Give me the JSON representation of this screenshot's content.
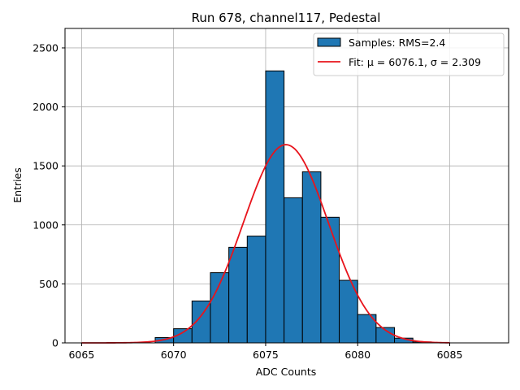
{
  "chart_data": {
    "type": "bar",
    "title": "Run 678, channel117, Pedestal",
    "xlabel": "ADC Counts",
    "ylabel": "Entries",
    "xlim": [
      6064.1,
      6088.2
    ],
    "ylim": [
      0,
      2665
    ],
    "xticks": [
      6065,
      6070,
      6075,
      6080,
      6085
    ],
    "yticks": [
      0,
      500,
      1000,
      1500,
      2000,
      2500
    ],
    "grid": true,
    "legend_position": "top-right",
    "histogram": {
      "legend_label": "Samples: RMS=2.4",
      "color": "#1f77b4",
      "edge_color": "#000000",
      "bins": [
        {
          "x0": 6069,
          "x1": 6070,
          "count": 45
        },
        {
          "x0": 6070,
          "x1": 6071,
          "count": 120
        },
        {
          "x0": 6071,
          "x1": 6072,
          "count": 355
        },
        {
          "x0": 6072,
          "x1": 6073,
          "count": 595
        },
        {
          "x0": 6073,
          "x1": 6074,
          "count": 810
        },
        {
          "x0": 6074,
          "x1": 6075,
          "count": 905
        },
        {
          "x0": 6075,
          "x1": 6076,
          "count": 2305
        },
        {
          "x0": 6076,
          "x1": 6077,
          "count": 1230
        },
        {
          "x0": 6077,
          "x1": 6078,
          "count": 1450
        },
        {
          "x0": 6078,
          "x1": 6079,
          "count": 1065
        },
        {
          "x0": 6079,
          "x1": 6080,
          "count": 530
        },
        {
          "x0": 6080,
          "x1": 6081,
          "count": 240
        },
        {
          "x0": 6081,
          "x1": 6082,
          "count": 130
        },
        {
          "x0": 6082,
          "x1": 6083,
          "count": 40
        },
        {
          "x0": 6083,
          "x1": 6084,
          "count": 8
        }
      ]
    },
    "fit": {
      "legend_label": "Fit: μ = 6076.1, σ = 2.309",
      "mu": 6076.1,
      "sigma": 2.309,
      "amplitude": 1680,
      "x_range": [
        6065,
        6085
      ],
      "color": "#e8141c"
    }
  }
}
